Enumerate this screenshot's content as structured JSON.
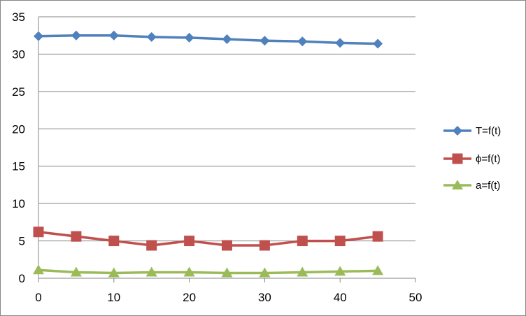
{
  "chart_data": {
    "type": "line",
    "title": "",
    "xlabel": "",
    "ylabel": "",
    "xlim": [
      0,
      50
    ],
    "ylim": [
      0,
      35
    ],
    "xticks": [
      0,
      10,
      20,
      30,
      40,
      50
    ],
    "yticks": [
      0,
      5,
      10,
      15,
      20,
      25,
      30,
      35
    ],
    "grid": "horizontal",
    "legend_position": "right",
    "x": [
      0,
      5,
      10,
      15,
      20,
      25,
      30,
      35,
      40,
      45
    ],
    "series": [
      {
        "name": "T=f(t)",
        "color": "#4F81BD",
        "marker": "diamond",
        "values": [
          32.4,
          32.5,
          32.5,
          32.3,
          32.2,
          32.0,
          31.8,
          31.7,
          31.5,
          31.4
        ]
      },
      {
        "name": "ϕ=f(t)",
        "color": "#C0504D",
        "marker": "square",
        "values": [
          6.2,
          5.6,
          5.0,
          4.4,
          5.0,
          4.4,
          4.4,
          5.0,
          5.0,
          5.6
        ]
      },
      {
        "name": "a=f(t)",
        "color": "#9BBB59",
        "marker": "triangle",
        "values": [
          1.1,
          0.8,
          0.7,
          0.8,
          0.8,
          0.7,
          0.7,
          0.8,
          0.9,
          1.0
        ]
      }
    ]
  }
}
